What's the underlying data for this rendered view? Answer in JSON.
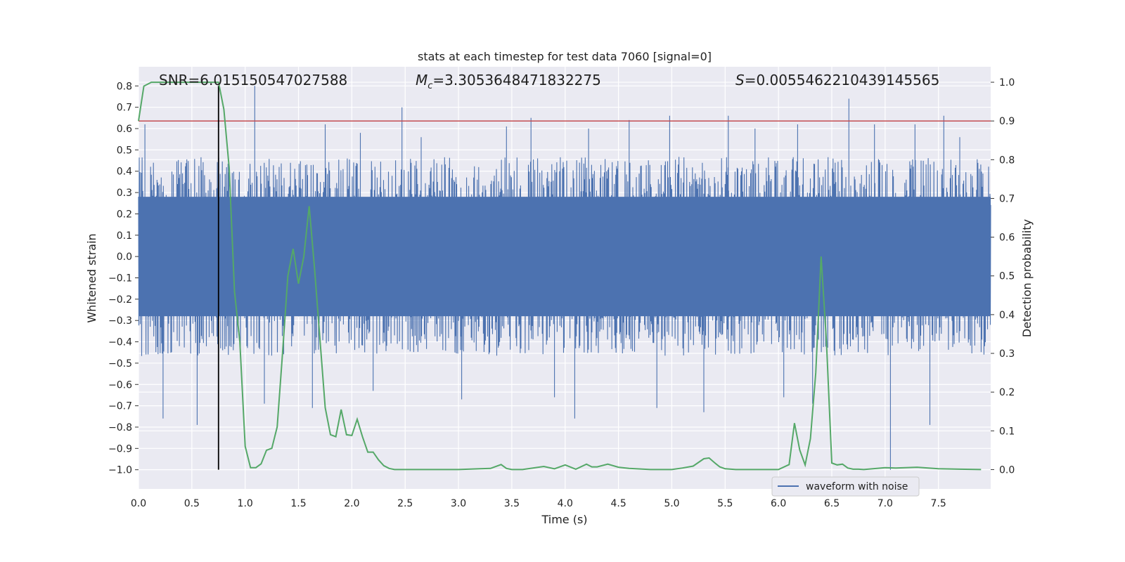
{
  "chart_data": {
    "type": "line",
    "title": "stats at each timestep for test data 7060 [signal=0]",
    "xlabel": "Time (s)",
    "ylabel_left": "Whitened strain",
    "ylabel_right": "Detection probability",
    "xlim": [
      0.0,
      7.99
    ],
    "ylim_left": [
      -1.09,
      0.89
    ],
    "ylim_right": [
      -0.05,
      1.04
    ],
    "x_ticks": [
      "0.0",
      "0.5",
      "1.0",
      "1.5",
      "2.0",
      "2.5",
      "3.0",
      "3.5",
      "4.0",
      "4.5",
      "5.0",
      "5.5",
      "6.0",
      "6.5",
      "7.0",
      "7.5"
    ],
    "y_left_ticks": [
      "0.8",
      "0.7",
      "0.6",
      "0.5",
      "0.4",
      "0.3",
      "0.2",
      "0.1",
      "0.0",
      "−0.1",
      "−0.2",
      "−0.3",
      "−0.4",
      "−0.5",
      "−0.6",
      "−0.7",
      "−0.8",
      "−0.9",
      "−1.0"
    ],
    "y_right_ticks": [
      "1.0",
      "0.9",
      "0.8",
      "0.7",
      "0.6",
      "0.5",
      "0.4",
      "0.3",
      "0.2",
      "0.1",
      "0.0"
    ],
    "grid": true,
    "legend": {
      "position": "bottom-right",
      "entries": [
        "waveform with noise"
      ]
    },
    "annotations": {
      "snr": "SNR=6.015150547027588",
      "mc_symbol": "M",
      "mc_sub": "c",
      "mc_value": "=3.3053648471832275",
      "s_symbol": "S",
      "s_value": "=0.0055462210439145565"
    },
    "threshold_right": 0.9,
    "marker_time": 0.75,
    "marker_range_left": [
      -1.0,
      0.8
    ],
    "colors": {
      "waveform": "#4c72b0",
      "probability": "#55a868",
      "threshold": "#c44e52",
      "marker": "#000000",
      "background": "#eaeaf2",
      "grid": "#ffffff"
    },
    "series": [
      {
        "name": "waveform with noise",
        "axis": "left",
        "band_envelope": {
          "upper": 0.45,
          "lower": -0.45,
          "dense_limit": 0.28
        },
        "notable_peaks": [
          [
            0.06,
            0.62
          ],
          [
            0.23,
            -0.76
          ],
          [
            0.55,
            -0.79
          ],
          [
            0.75,
            0.8
          ],
          [
            0.77,
            -0.43
          ],
          [
            1.09,
            0.8
          ],
          [
            1.18,
            -0.69
          ],
          [
            1.63,
            -0.71
          ],
          [
            1.75,
            0.62
          ],
          [
            2.08,
            0.58
          ],
          [
            2.2,
            -0.63
          ],
          [
            2.47,
            0.7
          ],
          [
            2.65,
            0.56
          ],
          [
            3.03,
            -0.67
          ],
          [
            3.45,
            0.61
          ],
          [
            3.68,
            0.65
          ],
          [
            3.9,
            -0.66
          ],
          [
            4.09,
            -0.76
          ],
          [
            4.22,
            0.6
          ],
          [
            4.6,
            0.64
          ],
          [
            4.86,
            -0.71
          ],
          [
            4.98,
            0.66
          ],
          [
            5.3,
            -0.73
          ],
          [
            5.53,
            0.66
          ],
          [
            5.78,
            0.6
          ],
          [
            6.05,
            -0.66
          ],
          [
            6.18,
            0.62
          ],
          [
            6.32,
            -0.69
          ],
          [
            6.66,
            0.74
          ],
          [
            6.9,
            0.62
          ],
          [
            7.05,
            -1.0
          ],
          [
            7.28,
            0.62
          ],
          [
            7.42,
            -0.79
          ],
          [
            7.55,
            0.66
          ],
          [
            7.7,
            0.56
          ]
        ]
      },
      {
        "name": "",
        "axis": "right",
        "x": [
          0.0,
          0.05,
          0.12,
          0.3,
          0.5,
          0.7,
          0.75,
          0.8,
          0.85,
          0.9,
          0.95,
          1.0,
          1.05,
          1.1,
          1.15,
          1.2,
          1.25,
          1.3,
          1.35,
          1.4,
          1.45,
          1.5,
          1.55,
          1.6,
          1.65,
          1.7,
          1.75,
          1.8,
          1.85,
          1.9,
          1.95,
          2.0,
          2.05,
          2.1,
          2.15,
          2.2,
          2.25,
          2.3,
          2.35,
          2.4,
          2.45,
          2.5,
          2.6,
          2.8,
          3.0,
          3.2,
          3.3,
          3.4,
          3.45,
          3.5,
          3.6,
          3.8,
          3.9,
          4.0,
          4.1,
          4.2,
          4.25,
          4.3,
          4.4,
          4.5,
          4.6,
          4.8,
          5.0,
          5.1,
          5.2,
          5.3,
          5.35,
          5.4,
          5.45,
          5.5,
          5.6,
          5.8,
          6.0,
          6.1,
          6.15,
          6.2,
          6.25,
          6.3,
          6.35,
          6.4,
          6.45,
          6.5,
          6.55,
          6.6,
          6.65,
          6.7,
          6.75,
          6.8,
          7.0,
          7.1,
          7.3,
          7.5,
          7.7,
          7.9
        ],
        "y": [
          0.9,
          0.99,
          1.0,
          1.0,
          1.0,
          1.0,
          1.0,
          0.93,
          0.78,
          0.46,
          0.33,
          0.06,
          0.005,
          0.005,
          0.015,
          0.05,
          0.055,
          0.11,
          0.3,
          0.5,
          0.57,
          0.48,
          0.55,
          0.68,
          0.52,
          0.34,
          0.16,
          0.09,
          0.085,
          0.155,
          0.09,
          0.088,
          0.13,
          0.085,
          0.045,
          0.045,
          0.025,
          0.01,
          0.003,
          0.0,
          0.0,
          0.0,
          0.0,
          0.0,
          0.0,
          0.002,
          0.003,
          0.013,
          0.003,
          0.0,
          0.0,
          0.008,
          0.002,
          0.012,
          0.001,
          0.014,
          0.007,
          0.007,
          0.014,
          0.006,
          0.003,
          0.0,
          0.0,
          0.004,
          0.009,
          0.028,
          0.03,
          0.018,
          0.007,
          0.002,
          0.0,
          0.0,
          0.0,
          0.013,
          0.12,
          0.05,
          0.012,
          0.08,
          0.25,
          0.55,
          0.33,
          0.017,
          0.012,
          0.014,
          0.004,
          0.001,
          0.001,
          0.0,
          0.005,
          0.004,
          0.006,
          0.002,
          0.001,
          0.0
        ]
      }
    ]
  }
}
